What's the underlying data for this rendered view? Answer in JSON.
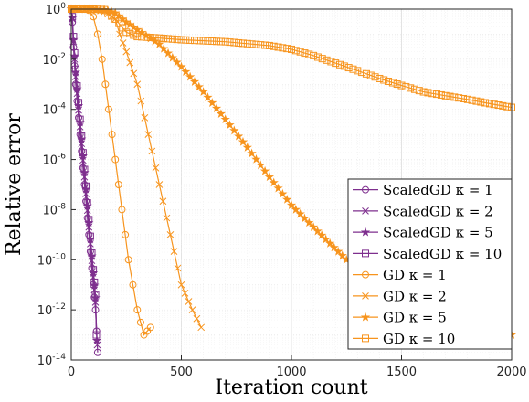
{
  "chart_data": {
    "type": "line",
    "xlabel": "Iteration count",
    "ylabel": "Relative error",
    "xlim": [
      0,
      2000
    ],
    "ylim": [
      1e-14,
      1
    ],
    "yscale": "log",
    "grid": true,
    "legend_placement": "bottom-right",
    "x_ticks": [
      "0",
      "500",
      "1000",
      "1500",
      "2000"
    ],
    "y_ticks": [
      {
        "base": "10",
        "exp": "-14"
      },
      {
        "base": "10",
        "exp": "-12"
      },
      {
        "base": "10",
        "exp": "-10"
      },
      {
        "base": "10",
        "exp": "-8"
      },
      {
        "base": "10",
        "exp": "-6"
      },
      {
        "base": "10",
        "exp": "-4"
      },
      {
        "base": "10",
        "exp": "-2"
      },
      {
        "base": "10",
        "exp": "0"
      }
    ],
    "series": [
      {
        "name": "ScaledGD κ = 1",
        "color": "#7E2F8E",
        "marker": "circle",
        "points": [
          [
            0,
            1
          ],
          [
            5,
            0.3
          ],
          [
            10,
            0.03
          ],
          [
            20,
            0.001
          ],
          [
            40,
            1e-05
          ],
          [
            60,
            1e-07
          ],
          [
            80,
            1e-09
          ],
          [
            100,
            1e-11
          ],
          [
            110,
            1e-12
          ],
          [
            120,
            2e-14
          ]
        ]
      },
      {
        "name": "ScaledGD κ = 2",
        "color": "#7E2F8E",
        "marker": "x",
        "points": [
          [
            0,
            1
          ],
          [
            5,
            0.4
          ],
          [
            10,
            0.05
          ],
          [
            20,
            0.002
          ],
          [
            40,
            2e-05
          ],
          [
            60,
            2e-07
          ],
          [
            80,
            2e-09
          ],
          [
            100,
            2e-11
          ],
          [
            110,
            2e-12
          ],
          [
            118,
            4e-14
          ]
        ]
      },
      {
        "name": "ScaledGD κ = 5",
        "color": "#7E2F8E",
        "marker": "star",
        "points": [
          [
            0,
            1
          ],
          [
            5,
            0.45
          ],
          [
            10,
            0.06
          ],
          [
            20,
            0.003
          ],
          [
            40,
            3e-05
          ],
          [
            60,
            3e-07
          ],
          [
            80,
            3e-09
          ],
          [
            100,
            3e-11
          ],
          [
            110,
            3e-12
          ],
          [
            116,
            6e-14
          ]
        ]
      },
      {
        "name": "ScaledGD κ = 10",
        "color": "#7E2F8E",
        "marker": "square",
        "points": [
          [
            0,
            1
          ],
          [
            5,
            0.5
          ],
          [
            10,
            0.08
          ],
          [
            20,
            0.004
          ],
          [
            40,
            4e-05
          ],
          [
            60,
            4e-07
          ],
          [
            80,
            4e-09
          ],
          [
            100,
            4e-11
          ],
          [
            110,
            4e-12
          ],
          [
            114,
            1e-13
          ]
        ]
      },
      {
        "name": "GD κ = 1",
        "color": "#F7941D",
        "marker": "circle",
        "points": [
          [
            0,
            1
          ],
          [
            30,
            1
          ],
          [
            60,
            0.99
          ],
          [
            80,
            0.9
          ],
          [
            100,
            0.5
          ],
          [
            120,
            0.1
          ],
          [
            140,
            0.01
          ],
          [
            170,
            0.0001
          ],
          [
            200,
            1e-06
          ],
          [
            230,
            1e-08
          ],
          [
            260,
            1e-10
          ],
          [
            300,
            1e-12
          ],
          [
            330,
            1e-13
          ],
          [
            360,
            2e-13
          ]
        ]
      },
      {
        "name": "GD κ = 2",
        "color": "#F7941D",
        "marker": "x",
        "points": [
          [
            0,
            1
          ],
          [
            50,
            1
          ],
          [
            100,
            0.99
          ],
          [
            150,
            0.8
          ],
          [
            200,
            0.4
          ],
          [
            220,
            0.1
          ],
          [
            250,
            0.02
          ],
          [
            300,
            0.001
          ],
          [
            350,
            1e-05
          ],
          [
            400,
            1e-07
          ],
          [
            450,
            1e-09
          ],
          [
            500,
            1e-11
          ],
          [
            550,
            1e-12
          ],
          [
            590,
            2e-13
          ]
        ]
      },
      {
        "name": "GD κ = 5",
        "color": "#F7941D",
        "marker": "star",
        "points": [
          [
            0,
            1
          ],
          [
            80,
            1
          ],
          [
            150,
            0.95
          ],
          [
            200,
            0.7
          ],
          [
            250,
            0.3
          ],
          [
            300,
            0.15
          ],
          [
            400,
            0.04
          ],
          [
            500,
            0.005
          ],
          [
            600,
            0.0005
          ],
          [
            700,
            4e-05
          ],
          [
            800,
            3e-06
          ],
          [
            900,
            2e-07
          ],
          [
            1000,
            1.5e-08
          ],
          [
            1100,
            2e-09
          ],
          [
            1250,
            1e-10
          ],
          [
            1500,
            3e-12
          ],
          [
            1800,
            1.5e-13
          ],
          [
            2000,
            1e-13
          ]
        ]
      },
      {
        "name": "GD κ = 10",
        "color": "#F7941D",
        "marker": "square",
        "points": [
          [
            0,
            1
          ],
          [
            100,
            1
          ],
          [
            150,
            0.95
          ],
          [
            200,
            0.4
          ],
          [
            250,
            0.12
          ],
          [
            300,
            0.08
          ],
          [
            400,
            0.07
          ],
          [
            500,
            0.06
          ],
          [
            700,
            0.05
          ],
          [
            900,
            0.035
          ],
          [
            1000,
            0.025
          ],
          [
            1100,
            0.014
          ],
          [
            1200,
            0.007
          ],
          [
            1300,
            0.0035
          ],
          [
            1400,
            0.0017
          ],
          [
            1500,
            0.0009
          ],
          [
            1600,
            0.0005
          ],
          [
            1700,
            0.00035
          ],
          [
            1800,
            0.00025
          ],
          [
            1900,
            0.00017
          ],
          [
            2000,
            0.00012
          ]
        ]
      }
    ]
  }
}
